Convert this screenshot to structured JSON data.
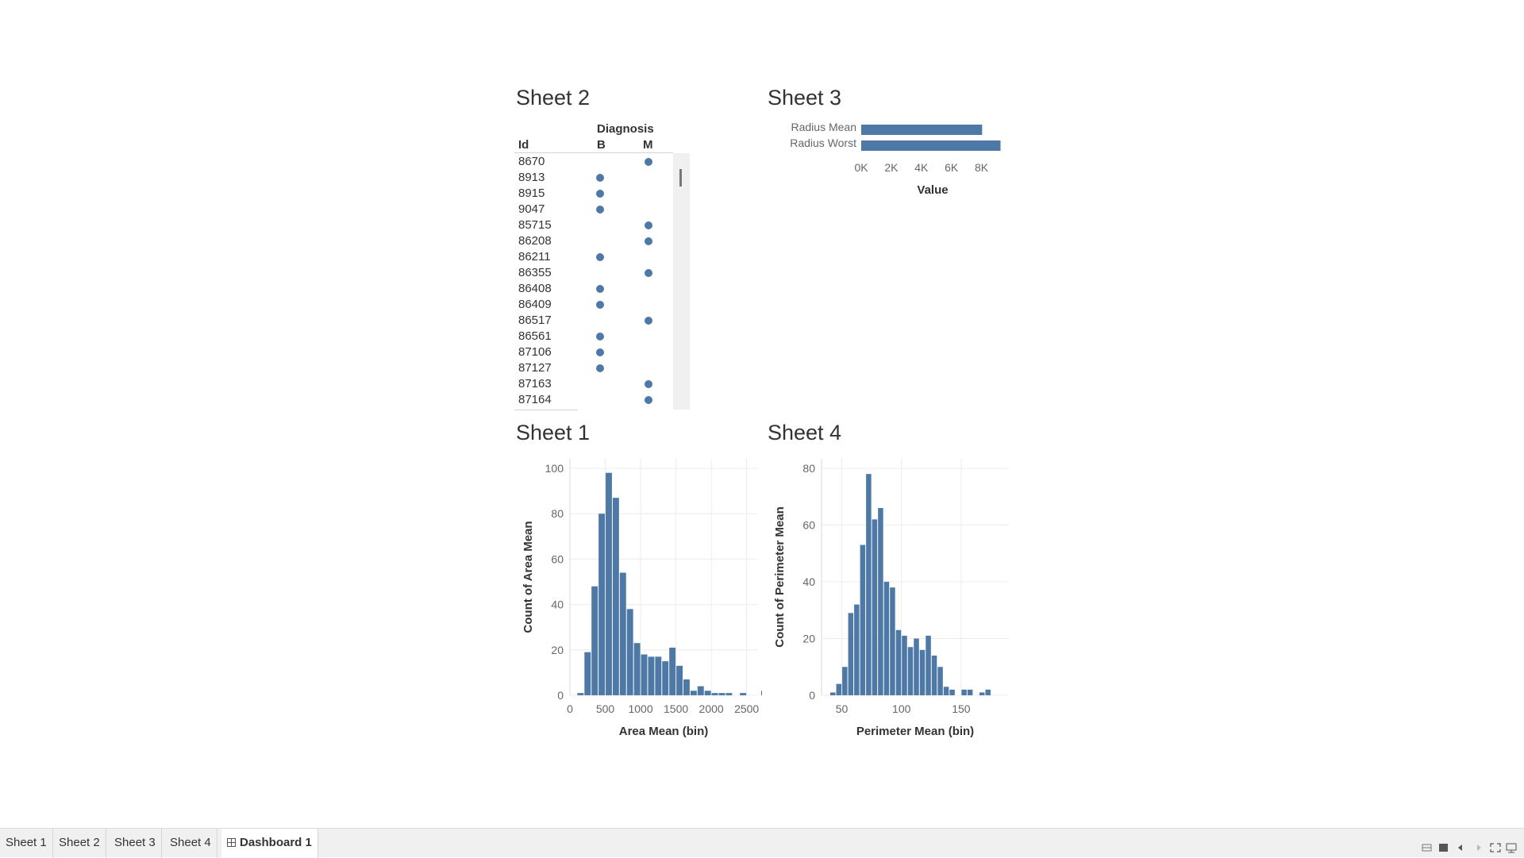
{
  "dashboard": {
    "sheet2": {
      "title": "Sheet 2",
      "header_diagnosis": "Diagnosis",
      "col_id": "Id",
      "col_b": "B",
      "col_m": "M",
      "rows": [
        {
          "id": "8670",
          "diagnosis": "M"
        },
        {
          "id": "8913",
          "diagnosis": "B"
        },
        {
          "id": "8915",
          "diagnosis": "B"
        },
        {
          "id": "9047",
          "diagnosis": "B"
        },
        {
          "id": "85715",
          "diagnosis": "M"
        },
        {
          "id": "86208",
          "diagnosis": "M"
        },
        {
          "id": "86211",
          "diagnosis": "B"
        },
        {
          "id": "86355",
          "diagnosis": "M"
        },
        {
          "id": "86408",
          "diagnosis": "B"
        },
        {
          "id": "86409",
          "diagnosis": "B"
        },
        {
          "id": "86517",
          "diagnosis": "M"
        },
        {
          "id": "86561",
          "diagnosis": "B"
        },
        {
          "id": "87106",
          "diagnosis": "B"
        },
        {
          "id": "87127",
          "diagnosis": "B"
        },
        {
          "id": "87163",
          "diagnosis": "M"
        },
        {
          "id": "87164",
          "diagnosis": "M"
        }
      ]
    },
    "sheet3": {
      "title": "Sheet 3"
    },
    "sheet1": {
      "title": "Sheet 1"
    },
    "sheet4": {
      "title": "Sheet 4"
    }
  },
  "colors": {
    "bar": "#4e79a7",
    "grid": "#ececec",
    "axis_text": "#666666"
  },
  "chart_data": [
    {
      "sheet": "Sheet 3",
      "type": "bar",
      "orientation": "horizontal",
      "categories": [
        "Radius Mean",
        "Radius Worst"
      ],
      "values": [
        8039,
        9262
      ],
      "xlabel": "Value",
      "xticks": [
        "0K",
        "2K",
        "4K",
        "6K",
        "8K"
      ],
      "xlim": [
        0,
        9500
      ]
    },
    {
      "sheet": "Sheet 1",
      "type": "bar",
      "subtype": "histogram",
      "bin_width": 100,
      "bin_start": 100,
      "values": [
        1,
        19,
        48,
        80,
        98,
        87,
        54,
        38,
        23,
        18,
        17,
        17,
        15,
        21,
        13,
        7,
        2,
        4,
        2,
        1,
        1,
        1,
        0,
        1,
        0,
        0,
        2
      ],
      "xlabel": "Area Mean (bin)",
      "ylabel": "Count of Area Mean",
      "xticks": [
        "0",
        "500",
        "1000",
        "1500",
        "2000",
        "2500"
      ],
      "yticks": [
        "0",
        "20",
        "40",
        "60",
        "80",
        "100"
      ],
      "xlim": [
        0,
        2650
      ],
      "ylim": [
        0,
        100
      ]
    },
    {
      "sheet": "Sheet 4",
      "type": "bar",
      "subtype": "histogram",
      "bin_width": 5,
      "bin_start": 40,
      "values": [
        1,
        4,
        10,
        29,
        32,
        53,
        78,
        62,
        66,
        40,
        38,
        23,
        21,
        17,
        20,
        16,
        21,
        14,
        10,
        3,
        2,
        0,
        2,
        2,
        0,
        1,
        2
      ],
      "xlabel": "Perimeter Mean (bin)",
      "ylabel": "Count of Perimeter Mean",
      "xticks": [
        "50",
        "100",
        "150"
      ],
      "yticks": [
        "0",
        "20",
        "40",
        "60",
        "80"
      ],
      "xlim": [
        33,
        190
      ],
      "ylim": [
        0,
        80
      ]
    }
  ],
  "tabs": [
    {
      "label": "Sheet 1",
      "active": false
    },
    {
      "label": "Sheet 2",
      "active": false
    },
    {
      "label": "Sheet 3",
      "active": false
    },
    {
      "label": "Sheet 4",
      "active": false
    },
    {
      "label": "Dashboard 1",
      "active": true
    }
  ]
}
